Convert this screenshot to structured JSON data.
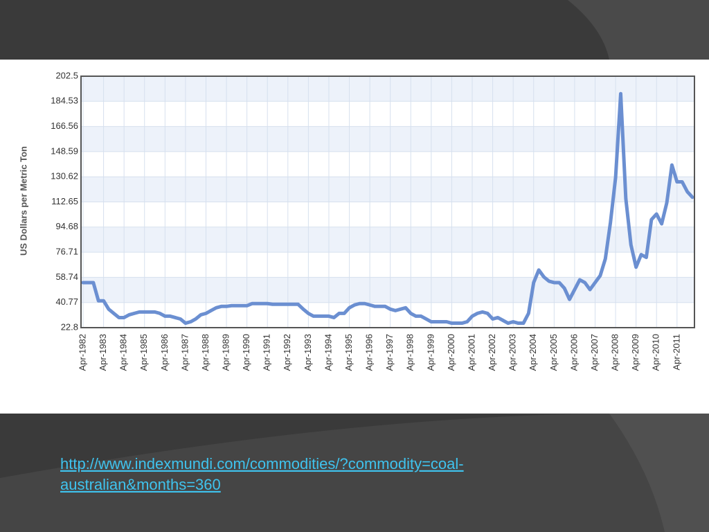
{
  "chart_data": {
    "type": "line",
    "y_label": "US Dollars per Metric Ton",
    "ylim": [
      22.8,
      202.5
    ],
    "yticks": [
      22.8,
      40.77,
      58.74,
      76.71,
      94.68,
      112.65,
      130.62,
      148.59,
      166.56,
      184.53,
      202.5
    ],
    "grid": true,
    "categories": [
      "Apr-1982",
      null,
      null,
      null,
      "Apr-1983",
      null,
      null,
      null,
      "Apr-1984",
      null,
      null,
      null,
      "Apr-1985",
      null,
      null,
      null,
      "Apr-1986",
      null,
      null,
      null,
      "Apr-1987",
      null,
      null,
      null,
      "Apr-1988",
      null,
      null,
      null,
      "Apr-1989",
      null,
      null,
      null,
      "Apr-1990",
      null,
      null,
      null,
      "Apr-1991",
      null,
      null,
      null,
      "Apr-1992",
      null,
      null,
      null,
      "Apr-1993",
      null,
      null,
      null,
      "Apr-1994",
      null,
      null,
      null,
      "Apr-1995",
      null,
      null,
      null,
      "Apr-1996",
      null,
      null,
      null,
      "Apr-1997",
      null,
      null,
      null,
      "Apr-1998",
      null,
      null,
      null,
      "Apr-1999",
      null,
      null,
      null,
      "Apr-2000",
      null,
      null,
      null,
      "Apr-2001",
      null,
      null,
      null,
      "Apr-2002",
      null,
      null,
      null,
      "Apr-2003",
      null,
      null,
      null,
      "Apr-2004",
      null,
      null,
      null,
      "Apr-2005",
      null,
      null,
      null,
      "Apr-2006",
      null,
      null,
      null,
      "Apr-2007",
      null,
      null,
      null,
      "Apr-2008",
      null,
      null,
      null,
      "Apr-2009",
      null,
      null,
      null,
      "Apr-2010",
      null,
      null,
      null,
      "Apr-2011",
      null,
      null,
      null
    ],
    "series": [
      {
        "color": "#6b8fd1",
        "values": [
          55,
          55,
          55,
          42,
          42,
          36,
          33,
          30,
          30,
          32,
          33,
          34,
          34,
          34,
          34,
          33,
          31,
          31,
          30,
          29,
          26,
          27,
          29,
          32,
          33,
          35,
          37,
          38,
          38,
          38.5,
          38.5,
          38.5,
          38.5,
          40,
          40,
          40,
          40,
          39.5,
          39.5,
          39.5,
          39.5,
          39.5,
          39.5,
          36,
          33,
          31,
          31,
          31,
          31,
          30,
          33,
          33,
          37,
          39,
          40,
          40,
          39,
          38,
          38,
          38,
          36,
          35,
          36,
          37,
          33,
          31,
          31,
          29,
          27,
          27,
          27,
          27,
          26,
          26,
          26,
          27,
          31,
          33,
          34,
          33,
          29,
          30,
          28,
          26,
          27,
          26,
          26,
          33,
          55,
          64,
          59,
          56,
          55,
          55,
          51,
          43,
          50,
          57,
          55,
          50,
          55,
          60,
          72,
          98,
          130,
          190,
          115,
          82,
          66,
          75,
          73,
          100,
          104,
          97,
          112,
          139,
          127,
          127,
          120,
          116
        ]
      }
    ]
  },
  "source_link": [
    "http://www.indexmundi.com/commodities/?commodity=coal-",
    "australian&months=360"
  ]
}
